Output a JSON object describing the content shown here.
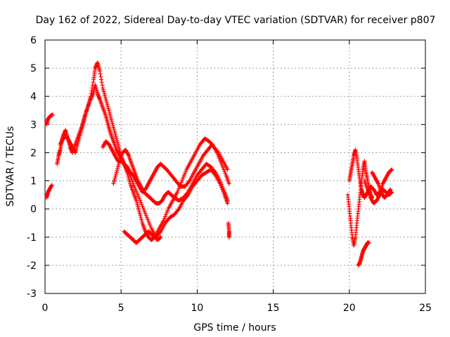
{
  "chart_data": {
    "type": "scatter",
    "title": "Day 162 of 2022, Sidereal Day-to-day VTEC variation (SDTVAR) for receiver p807",
    "xlabel": "GPS time / hours",
    "ylabel": "SDTVAR / TECUs",
    "xlim": [
      0,
      25
    ],
    "ylim": [
      -3,
      6
    ],
    "xticks": [
      0,
      5,
      10,
      15,
      20,
      25
    ],
    "yticks": [
      -3,
      -2,
      -1,
      0,
      1,
      2,
      3,
      4,
      5,
      6
    ],
    "grid": true,
    "marker": "+",
    "series": [
      {
        "name": "p807",
        "color": "#ff0000",
        "tracks": [
          {
            "x": [
              0.1,
              0.2,
              0.3,
              0.45
            ],
            "y": [
              0.4,
              0.6,
              0.7,
              0.85
            ]
          },
          {
            "x": [
              0.1,
              0.2,
              0.35,
              0.5
            ],
            "y": [
              3.0,
              3.2,
              3.3,
              3.35
            ]
          },
          {
            "x": [
              0.8,
              0.9,
              1.0,
              1.1,
              1.2,
              1.35,
              1.5,
              1.65,
              1.8,
              2.0,
              2.2,
              2.4,
              2.6,
              2.8,
              3.0,
              3.15,
              3.3,
              3.45,
              3.6,
              3.8,
              4.0,
              4.15,
              4.3,
              4.5,
              4.7,
              4.9,
              5.1,
              5.3,
              5.5,
              5.8,
              6.1,
              6.4,
              6.7,
              7.0,
              7.3,
              7.6,
              7.9,
              8.2,
              8.5,
              8.8,
              9.1,
              9.4,
              9.7,
              10.0,
              10.3,
              10.6,
              10.9,
              11.2,
              11.5,
              11.8,
              12.0
            ],
            "y": [
              1.6,
              1.9,
              2.1,
              2.4,
              2.6,
              2.8,
              2.5,
              2.2,
              2.0,
              2.3,
              2.6,
              2.9,
              3.3,
              3.6,
              3.9,
              4.1,
              4.4,
              4.1,
              3.9,
              3.6,
              3.3,
              3.0,
              2.7,
              2.4,
              2.1,
              1.9,
              1.7,
              1.5,
              1.3,
              0.9,
              0.5,
              0.1,
              -0.3,
              -0.7,
              -1.0,
              -0.8,
              -0.5,
              -0.3,
              -0.2,
              0.0,
              0.3,
              0.5,
              0.8,
              1.0,
              1.2,
              1.3,
              1.4,
              1.2,
              0.9,
              0.5,
              0.2
            ]
          },
          {
            "x": [
              1.0,
              1.2,
              1.4,
              1.6,
              1.8,
              2.0,
              2.2,
              2.4,
              2.6,
              2.8,
              3.0,
              3.2,
              3.3,
              3.45,
              3.6,
              3.8,
              4.0,
              4.2,
              4.4,
              4.6,
              4.8,
              5.0,
              5.2,
              5.4,
              5.6,
              5.8,
              6.0,
              6.2,
              6.4,
              6.6,
              6.8,
              7.0,
              7.2,
              7.5,
              7.8,
              8.1,
              8.4,
              8.7,
              9.0,
              9.3,
              9.6,
              9.9,
              10.2,
              10.5,
              10.8,
              11.1,
              11.4,
              11.7,
              12.0
            ],
            "y": [
              2.3,
              2.5,
              2.6,
              2.4,
              2.2,
              2.0,
              2.4,
              2.8,
              3.2,
              3.6,
              4.0,
              4.6,
              5.0,
              5.2,
              4.9,
              4.3,
              3.9,
              3.5,
              3.1,
              2.7,
              2.3,
              1.9,
              1.6,
              1.3,
              0.9,
              0.6,
              0.3,
              -0.1,
              -0.5,
              -0.8,
              -1.0,
              -1.1,
              -1.0,
              -0.7,
              -0.4,
              0.0,
              0.3,
              0.6,
              1.0,
              1.4,
              1.7,
              2.0,
              2.3,
              2.5,
              2.4,
              2.2,
              2.0,
              1.7,
              1.4
            ]
          },
          {
            "x": [
              3.8,
              4.0,
              4.2,
              4.4,
              4.6,
              4.8,
              5.0,
              5.2,
              5.4,
              5.6,
              5.8,
              6.0,
              6.2,
              6.4,
              6.6,
              6.8,
              7.0,
              7.2,
              7.4,
              7.6,
              7.8,
              8.0,
              8.3,
              8.6,
              8.9,
              9.2,
              9.5,
              9.8,
              10.1,
              10.4,
              10.7,
              11.0,
              11.3,
              11.6,
              11.9,
              12.1
            ],
            "y": [
              2.2,
              2.4,
              2.3,
              2.1,
              1.9,
              1.7,
              1.7,
              1.6,
              1.5,
              1.3,
              1.2,
              1.0,
              0.8,
              0.6,
              0.7,
              0.9,
              1.1,
              1.3,
              1.5,
              1.6,
              1.5,
              1.4,
              1.2,
              1.0,
              0.8,
              0.8,
              1.0,
              1.3,
              1.6,
              1.9,
              2.1,
              2.3,
              2.0,
              1.6,
              1.2,
              0.9
            ]
          },
          {
            "x": [
              4.5,
              4.7,
              4.9,
              5.1,
              5.3,
              5.5,
              5.7,
              5.9,
              6.1,
              6.3,
              6.5,
              6.7,
              6.9,
              7.1,
              7.3,
              7.5,
              7.7,
              7.9,
              8.1,
              8.3,
              8.5,
              8.8,
              9.1,
              9.4,
              9.7,
              10.0,
              10.3,
              10.6,
              10.9,
              11.2,
              11.5,
              11.8,
              12.0
            ],
            "y": [
              0.9,
              1.3,
              1.7,
              2.0,
              2.1,
              1.9,
              1.6,
              1.3,
              1.0,
              0.8,
              0.6,
              0.5,
              0.4,
              0.3,
              0.2,
              0.2,
              0.3,
              0.5,
              0.6,
              0.5,
              0.4,
              0.3,
              0.4,
              0.6,
              0.9,
              1.2,
              1.4,
              1.6,
              1.5,
              1.3,
              1.0,
              0.6,
              0.3
            ]
          },
          {
            "x": [
              5.2,
              5.4,
              5.6,
              5.8,
              6.0,
              6.2,
              6.4,
              6.6,
              6.8,
              7.0,
              7.2,
              7.4,
              7.6
            ],
            "y": [
              -0.8,
              -0.9,
              -1.0,
              -1.1,
              -1.2,
              -1.1,
              -1.0,
              -0.9,
              -0.8,
              -0.9,
              -1.0,
              -1.1,
              -1.0
            ]
          },
          {
            "x": [
              12.05,
              12.1,
              12.1
            ],
            "y": [
              -0.5,
              -0.8,
              -1.0
            ]
          },
          {
            "x": [
              19.9,
              20.0,
              20.1,
              20.2,
              20.3,
              20.4,
              20.5,
              20.6,
              20.7,
              20.8,
              20.9,
              21.0,
              21.1,
              21.2,
              21.3,
              21.4,
              21.5
            ],
            "y": [
              0.5,
              0.0,
              -0.5,
              -1.0,
              -1.3,
              -1.0,
              -0.5,
              0.0,
              0.5,
              1.0,
              1.4,
              1.7,
              1.3,
              1.0,
              0.7,
              0.5,
              0.4
            ]
          },
          {
            "x": [
              20.0,
              20.1,
              20.2,
              20.3,
              20.4,
              20.5,
              20.6,
              20.7,
              20.8,
              20.9,
              21.0,
              21.2,
              21.4,
              21.6,
              21.8,
              22.0,
              22.2,
              22.4,
              22.6,
              22.8
            ],
            "y": [
              1.0,
              1.3,
              1.6,
              1.9,
              2.1,
              1.8,
              1.4,
              1.0,
              0.7,
              0.5,
              0.4,
              0.6,
              0.8,
              0.7,
              0.5,
              0.6,
              0.9,
              1.1,
              1.3,
              1.4
            ]
          },
          {
            "x": [
              20.6,
              20.7,
              20.8,
              20.9,
              21.0,
              21.1,
              21.2,
              21.3
            ],
            "y": [
              -2.0,
              -1.9,
              -1.7,
              -1.5,
              -1.4,
              -1.3,
              -1.2,
              -1.2
            ]
          },
          {
            "x": [
              21.0,
              21.2,
              21.4,
              21.6,
              21.8,
              22.0,
              22.2,
              22.4,
              22.6,
              22.8
            ],
            "y": [
              1.0,
              0.7,
              0.4,
              0.2,
              0.3,
              0.5,
              0.7,
              0.6,
              0.5,
              0.6
            ]
          },
          {
            "x": [
              21.5,
              21.7,
              21.9,
              22.1,
              22.3,
              22.5,
              22.7
            ],
            "y": [
              1.3,
              1.1,
              0.9,
              0.6,
              0.4,
              0.5,
              0.7
            ]
          }
        ]
      }
    ]
  }
}
